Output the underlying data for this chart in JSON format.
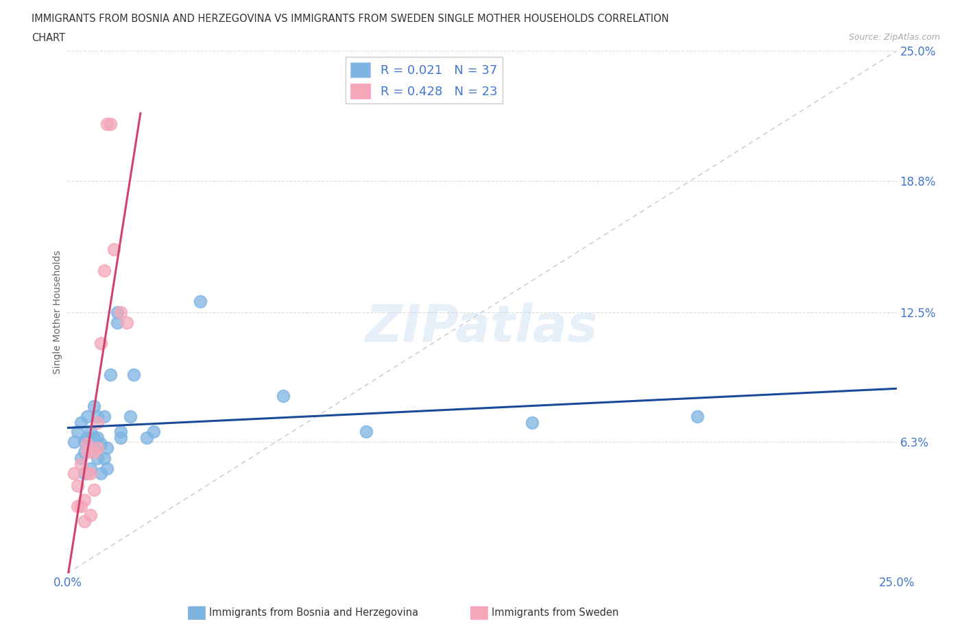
{
  "title_line1": "IMMIGRANTS FROM BOSNIA AND HERZEGOVINA VS IMMIGRANTS FROM SWEDEN SINGLE MOTHER HOUSEHOLDS CORRELATION",
  "title_line2": "CHART",
  "source": "Source: ZipAtlas.com",
  "ylabel": "Single Mother Households",
  "xlabel_bosnia": "Immigrants from Bosnia and Herzegovina",
  "xlabel_sweden": "Immigrants from Sweden",
  "R_bosnia": 0.021,
  "N_bosnia": 37,
  "R_sweden": 0.428,
  "N_sweden": 23,
  "xlim": [
    0.0,
    0.25
  ],
  "ylim": [
    0.0,
    0.25
  ],
  "yticks": [
    0.0,
    0.063,
    0.125,
    0.188,
    0.25
  ],
  "ytick_labels": [
    "",
    "6.3%",
    "12.5%",
    "18.8%",
    "25.0%"
  ],
  "xtick_labels": [
    "0.0%",
    "25.0%"
  ],
  "color_bosnia": "#7eb4e2",
  "color_sweden": "#f4a7b9",
  "trendline_bosnia": "#1a4a9a",
  "trendline_sweden": "#d04070",
  "legend_text_color": "#4477cc",
  "watermark": "ZIPatlas",
  "bosnia_x": [
    0.002,
    0.003,
    0.004,
    0.004,
    0.005,
    0.005,
    0.005,
    0.006,
    0.006,
    0.007,
    0.007,
    0.008,
    0.008,
    0.008,
    0.009,
    0.009,
    0.009,
    0.01,
    0.01,
    0.011,
    0.011,
    0.012,
    0.012,
    0.013,
    0.015,
    0.015,
    0.016,
    0.016,
    0.019,
    0.02,
    0.024,
    0.026,
    0.04,
    0.065,
    0.09,
    0.14,
    0.19
  ],
  "bosnia_y": [
    0.063,
    0.068,
    0.055,
    0.072,
    0.063,
    0.058,
    0.048,
    0.065,
    0.075,
    0.068,
    0.05,
    0.08,
    0.065,
    0.06,
    0.075,
    0.065,
    0.055,
    0.062,
    0.048,
    0.075,
    0.055,
    0.06,
    0.05,
    0.095,
    0.12,
    0.125,
    0.068,
    0.065,
    0.075,
    0.095,
    0.065,
    0.068,
    0.13,
    0.085,
    0.068,
    0.072,
    0.075
  ],
  "sweden_x": [
    0.002,
    0.003,
    0.003,
    0.004,
    0.004,
    0.005,
    0.005,
    0.006,
    0.006,
    0.006,
    0.007,
    0.007,
    0.008,
    0.008,
    0.009,
    0.009,
    0.01,
    0.011,
    0.012,
    0.013,
    0.014,
    0.016,
    0.018
  ],
  "sweden_y": [
    0.048,
    0.042,
    0.032,
    0.052,
    0.032,
    0.035,
    0.025,
    0.048,
    0.058,
    0.062,
    0.028,
    0.048,
    0.058,
    0.04,
    0.072,
    0.06,
    0.11,
    0.145,
    0.215,
    0.215,
    0.155,
    0.125,
    0.12
  ],
  "trendline_bosnia_xrange": [
    0.0,
    0.25
  ],
  "trendline_sweden_xrange": [
    0.0,
    0.022
  ]
}
